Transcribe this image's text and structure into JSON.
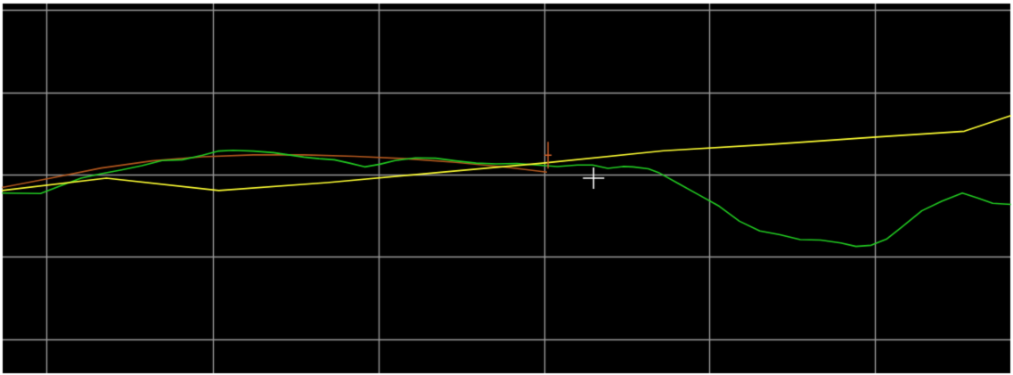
{
  "view": {
    "background_color": "#000000",
    "border_color": "#ffffff",
    "grid_color": "#9a9a9a",
    "cursor_color": "#ffffff",
    "marker_color": "#d0602a"
  },
  "polylines": [
    {
      "id": "design-grade-line",
      "color": "#ffff33",
      "points": [
        [
          0.2,
          50.8
        ],
        [
          10.5,
          47.5
        ],
        [
          21.6,
          50.8
        ],
        [
          32.3,
          48.7
        ],
        [
          43.3,
          46.0
        ],
        [
          53.6,
          43.5
        ],
        [
          65.5,
          40.2
        ],
        [
          76.0,
          38.5
        ],
        [
          86.8,
          36.5
        ],
        [
          95.2,
          35.0
        ],
        [
          99.8,
          30.8
        ]
      ]
    },
    {
      "id": "vertical-curve-line",
      "color": "#b4581e",
      "points": [
        [
          0.2,
          50.0
        ],
        [
          5.0,
          47.5
        ],
        [
          10.0,
          44.8
        ],
        [
          15.0,
          42.9
        ],
        [
          20.0,
          41.8
        ],
        [
          25.0,
          41.3
        ],
        [
          30.0,
          41.3
        ],
        [
          35.0,
          41.7
        ],
        [
          40.0,
          42.3
        ],
        [
          45.0,
          43.3
        ],
        [
          50.0,
          44.6
        ],
        [
          54.0,
          45.9
        ]
      ]
    },
    {
      "id": "existing-ground-line",
      "color": "#22cc22",
      "points": [
        [
          0.2,
          51.5
        ],
        [
          4.0,
          51.6
        ],
        [
          6.0,
          49.5
        ],
        [
          8.0,
          47.5
        ],
        [
          10.0,
          46.3
        ],
        [
          12.0,
          45.3
        ],
        [
          14.0,
          44.2
        ],
        [
          16.0,
          42.8
        ],
        [
          18.0,
          42.6
        ],
        [
          20.0,
          41.4
        ],
        [
          21.5,
          40.3
        ],
        [
          23.0,
          40.1
        ],
        [
          25.0,
          40.3
        ],
        [
          27.0,
          40.7
        ],
        [
          28.5,
          41.3
        ],
        [
          30.0,
          41.9
        ],
        [
          31.5,
          42.3
        ],
        [
          33.0,
          42.6
        ],
        [
          34.5,
          43.5
        ],
        [
          36.0,
          44.5
        ],
        [
          37.5,
          43.8
        ],
        [
          39.0,
          42.8
        ],
        [
          41.0,
          42.1
        ],
        [
          43.0,
          42.2
        ],
        [
          45.0,
          42.9
        ],
        [
          47.0,
          43.5
        ],
        [
          49.0,
          43.7
        ],
        [
          51.0,
          43.6
        ],
        [
          53.0,
          44.0
        ],
        [
          55.0,
          44.4
        ],
        [
          57.0,
          44.0
        ],
        [
          58.5,
          44.0
        ],
        [
          60.0,
          44.9
        ],
        [
          61.5,
          44.4
        ],
        [
          62.5,
          44.5
        ],
        [
          64.0,
          45.0
        ],
        [
          65.0,
          46.0
        ],
        [
          67.0,
          49.0
        ],
        [
          69.0,
          52.0
        ],
        [
          71.0,
          55.0
        ],
        [
          73.0,
          59.0
        ],
        [
          75.0,
          61.6
        ],
        [
          77.0,
          62.6
        ],
        [
          79.0,
          63.9
        ],
        [
          81.0,
          64.0
        ],
        [
          83.0,
          64.8
        ],
        [
          84.5,
          65.7
        ],
        [
          86.0,
          65.4
        ],
        [
          87.5,
          63.8
        ],
        [
          89.0,
          60.6
        ],
        [
          91.0,
          56.2
        ],
        [
          93.0,
          53.6
        ],
        [
          95.0,
          51.5
        ],
        [
          96.5,
          52.8
        ],
        [
          98.0,
          54.2
        ],
        [
          99.8,
          54.5
        ]
      ]
    }
  ],
  "pvi_marker": {
    "x": 54.1,
    "y": 41.4
  },
  "cursor": {
    "x": 58.6,
    "y": 47.5
  }
}
